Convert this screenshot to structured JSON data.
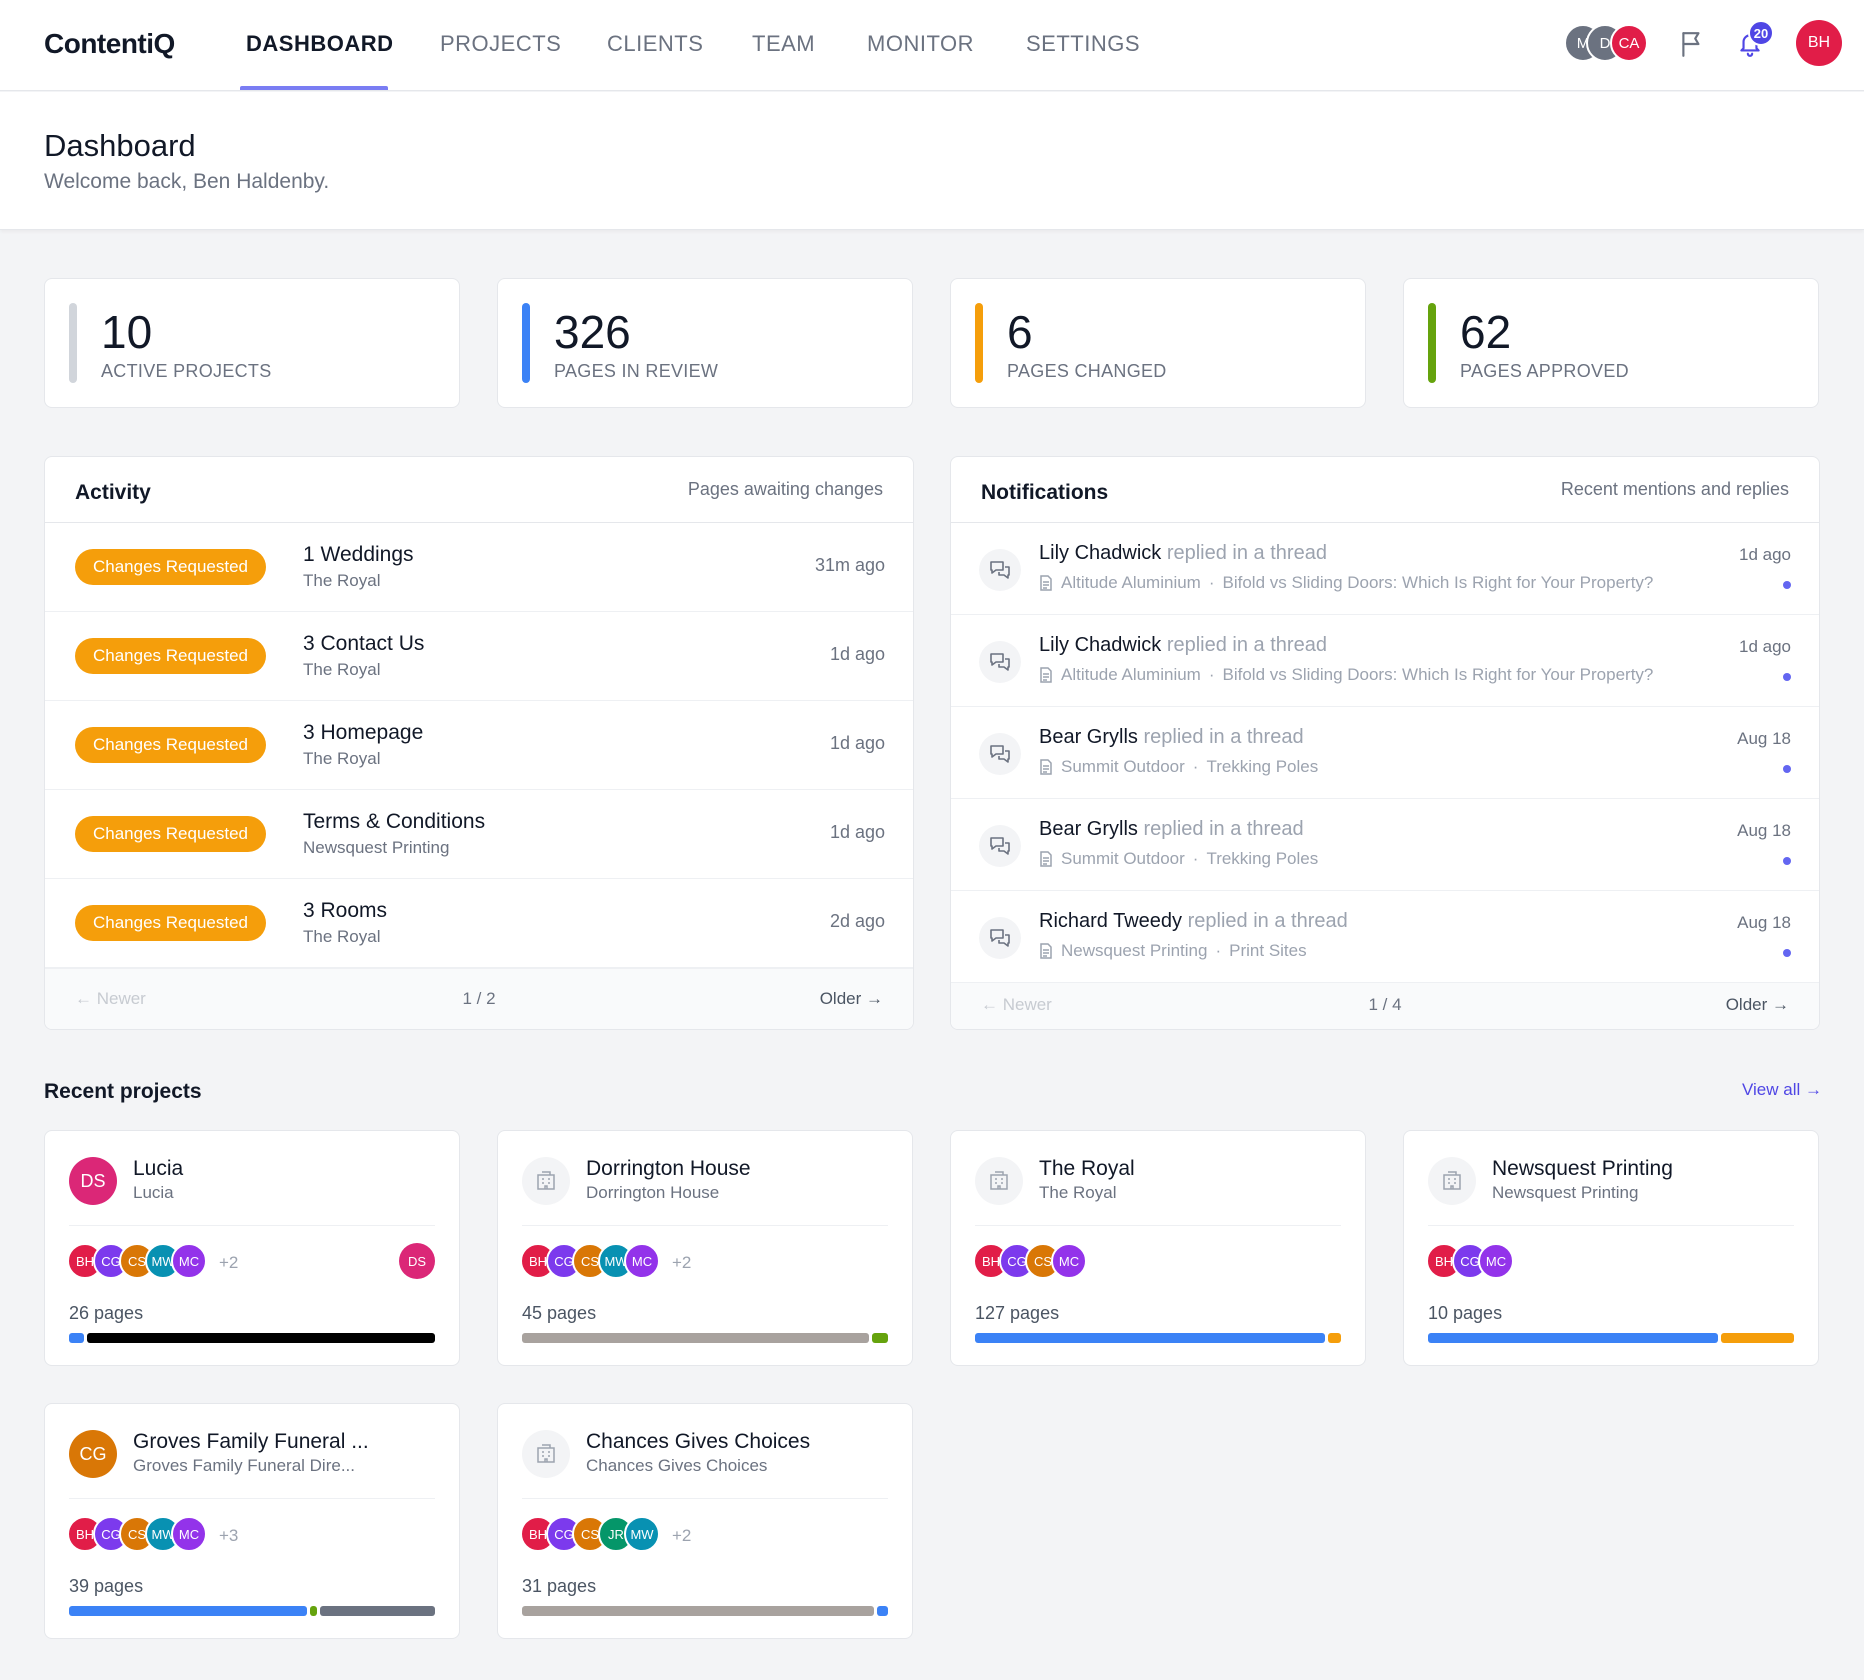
{
  "nav": {
    "logo": "ContentiQ",
    "tabs": [
      "DASHBOARD",
      "PROJECTS",
      "CLIENTS",
      "TEAM",
      "MONITOR",
      "SETTINGS"
    ],
    "online_users": [
      {
        "initials": "M",
        "color": "#6b7280"
      },
      {
        "initials": "D",
        "color": "#6b7280"
      },
      {
        "initials": "CA",
        "color": "#e11d48"
      }
    ],
    "notification_count": "20",
    "me_initials": "BH",
    "icons": [
      "flag-icon",
      "bell-icon"
    ]
  },
  "header": {
    "title": "Dashboard",
    "welcome": "Welcome back, Ben Haldenby."
  },
  "stats": [
    {
      "value": "10",
      "label": "ACTIVE PROJECTS",
      "color": "#d1d5db"
    },
    {
      "value": "326",
      "label": "PAGES IN REVIEW",
      "color": "#3b82f6"
    },
    {
      "value": "6",
      "label": "PAGES CHANGED",
      "color": "#f59e0b"
    },
    {
      "value": "62",
      "label": "PAGES APPROVED",
      "color": "#65a30d"
    }
  ],
  "activity": {
    "title": "Activity",
    "subtitle": "Pages awaiting changes",
    "items": [
      {
        "status": "Changes Requested",
        "page": "1 Weddings",
        "client": "The Royal",
        "time": "31m ago"
      },
      {
        "status": "Changes Requested",
        "page": "3 Contact Us",
        "client": "The Royal",
        "time": "1d ago"
      },
      {
        "status": "Changes Requested",
        "page": "3 Homepage",
        "client": "The Royal",
        "time": "1d ago"
      },
      {
        "status": "Changes Requested",
        "page": "Terms & Conditions",
        "client": "Newsquest Printing",
        "time": "1d ago"
      },
      {
        "status": "Changes Requested",
        "page": "3 Rooms",
        "client": "The Royal",
        "time": "2d ago"
      }
    ],
    "pager": {
      "newer": "← Newer",
      "page": "1 / 2",
      "older": "Older →"
    }
  },
  "notifications": {
    "title": "Notifications",
    "subtitle": "Recent mentions and replies",
    "items": [
      {
        "who": "Lily Chadwick",
        "action": "replied in a thread",
        "client": "Altitude Aluminium",
        "page": "Bifold vs Sliding Doors: Which Is Right for Your Property?",
        "time": "1d ago"
      },
      {
        "who": "Lily Chadwick",
        "action": "replied in a thread",
        "client": "Altitude Aluminium",
        "page": "Bifold vs Sliding Doors: Which Is Right for Your Property?",
        "time": "1d ago"
      },
      {
        "who": "Bear Grylls",
        "action": "replied in a thread",
        "client": "Summit Outdoor",
        "page": "Trekking Poles",
        "time": "Aug 18"
      },
      {
        "who": "Bear Grylls",
        "action": "replied in a thread",
        "client": "Summit Outdoor",
        "page": "Trekking Poles",
        "time": "Aug 18"
      },
      {
        "who": "Richard Tweedy",
        "action": "replied in a thread",
        "client": "Newsquest Printing",
        "page": "Print Sites",
        "time": "Aug 18"
      }
    ],
    "separator": "·",
    "pager": {
      "newer": "← Newer",
      "page": "1 / 4",
      "older": "Older →"
    }
  },
  "recent": {
    "title": "Recent projects",
    "view_all": "View all →",
    "projects": [
      {
        "name": "Lucia",
        "client": "Lucia",
        "avatar": "DS",
        "avatar_color": "#db2777",
        "team": [
          "BH",
          "CG",
          "CS",
          "MW",
          "MC"
        ],
        "more": "+2",
        "pages": "26 pages",
        "owner": "DS",
        "progress": [
          {
            "color": "#3b82f6",
            "frac": 0.04
          },
          {
            "color": "#000000",
            "frac": 0.96
          }
        ]
      },
      {
        "name": "Dorrington House",
        "client": "Dorrington House",
        "avatar": "",
        "avatar_color": "",
        "team": [
          "BH",
          "CG",
          "CS",
          "MW",
          "MC"
        ],
        "more": "+2",
        "pages": "45 pages",
        "owner": "",
        "progress": [
          {
            "color": "#a8a29e",
            "frac": 0.955
          },
          {
            "color": "#65a30d",
            "frac": 0.045
          }
        ]
      },
      {
        "name": "The Royal",
        "client": "The Royal",
        "avatar": "",
        "avatar_color": "",
        "team": [
          "BH",
          "CG",
          "CS",
          "MC"
        ],
        "more": "",
        "pages": "127 pages",
        "owner": "",
        "progress": [
          {
            "color": "#3b82f6",
            "frac": 0.965
          },
          {
            "color": "#f59e0b",
            "frac": 0.035
          }
        ]
      },
      {
        "name": "Newsquest Printing",
        "client": "Newsquest Printing",
        "avatar": "",
        "avatar_color": "",
        "team": [
          "BH",
          "CG",
          "MC"
        ],
        "more": "",
        "pages": "10 pages",
        "owner": "",
        "progress": [
          {
            "color": "#3b82f6",
            "frac": 0.8
          },
          {
            "color": "#f59e0b",
            "frac": 0.2
          }
        ]
      },
      {
        "name": "Groves Family Funeral ...",
        "client": "Groves Family Funeral Dire...",
        "avatar": "CG",
        "avatar_color": "#d97706",
        "team": [
          "BH",
          "CG",
          "CS",
          "MW",
          "MC"
        ],
        "more": "+3",
        "pages": "39 pages",
        "owner": "",
        "progress": [
          {
            "color": "#3b82f6",
            "frac": 0.66
          },
          {
            "color": "#65a30d",
            "frac": 0.02
          },
          {
            "color": "#6b7280",
            "frac": 0.32
          }
        ]
      },
      {
        "name": "Chances Gives Choices",
        "client": "Chances Gives Choices",
        "avatar": "",
        "avatar_color": "",
        "team": [
          "BH",
          "CG",
          "CS",
          "JR",
          "MW"
        ],
        "more": "+2",
        "pages": "31 pages",
        "owner": "",
        "progress": [
          {
            "color": "#a8a29e",
            "frac": 0.97
          },
          {
            "color": "#3b82f6",
            "frac": 0.03
          }
        ]
      }
    ]
  },
  "team_colors": {
    "BH": "#e11d48",
    "CG": "#7c3aed",
    "CS": "#d97706",
    "MW": "#0891b2",
    "MC": "#9333ea",
    "JR": "#059669"
  }
}
